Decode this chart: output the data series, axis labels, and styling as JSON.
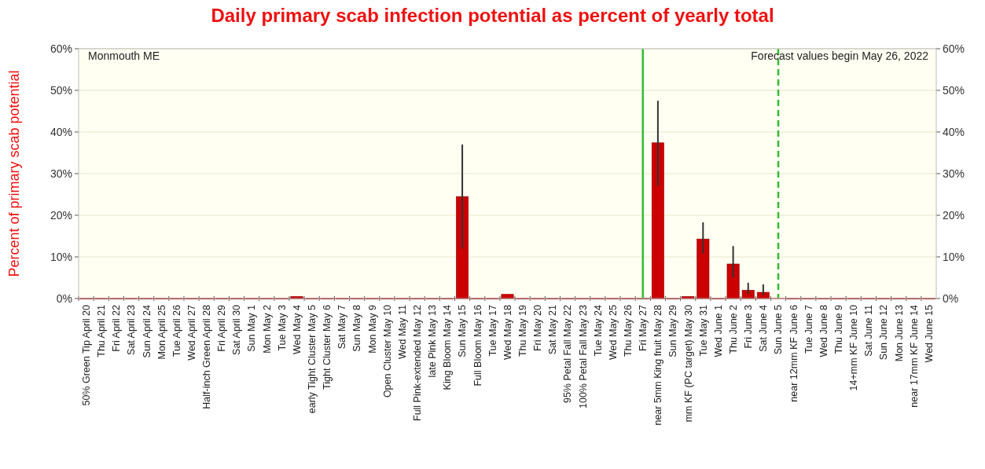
{
  "chart_data": {
    "type": "bar",
    "title": "Daily primary scab infection potential as percent of yearly total",
    "ylabel": "Percent of  primary scab potential",
    "annotations": [
      "Monmouth ME",
      "Forecast values begin May 26, 2022"
    ],
    "categories": [
      "50% Green Tip  April 20",
      "Thu  April 21",
      "Fri  April 22",
      "Sat  April 23",
      "Sun  April 24",
      "Mon  April 25",
      "Tue  April 26",
      "Wed  April 27",
      "Half-inch Green  April 28",
      "Fri  April 29",
      "Sat  April 30",
      "Sun  May 1",
      "Mon  May 2",
      "Tue  May 3",
      "Wed  May 4",
      "early Tight Cluster  May 5",
      "Tight Cluster  May 6",
      "Sat  May 7",
      "Sun  May 8",
      "Mon  May 9",
      "Open Cluster  May 10",
      "Wed  May 11",
      "Full Pink-extended  May 12",
      "late Pink  May 13",
      "King Bloom  May 14",
      "Sun  May 15",
      "Full Bloom  May 16",
      "Tue  May 17",
      "Wed  May 18",
      "Thu  May 19",
      "Fri  May 20",
      "Sat  May 21",
      "95% Petal Fall  May 22",
      "100% Petal Fall  May 23",
      "Tue  May 24",
      "Wed  May 25",
      "Thu  May 26",
      "Fri  May 27",
      "near 5mm King fruit  May 28",
      "Sun  May 29",
      "mm KF (PC target)  May 30",
      "Tue  May 31",
      "Wed  June 1",
      "Thu  June 2",
      "Fri  June 3",
      "Sat  June 4",
      "Sun  June 5",
      "near 12mm KF  June 6",
      "Tue  June 7",
      "Wed  June 8",
      "Thu  June 9",
      "14+mm KF  June 10",
      "Sat  June 11",
      "Sun  June 12",
      "Mon  June 13",
      "near 17mm KF  June 14",
      "Wed  June 15"
    ],
    "values": [
      0,
      0,
      0,
      0,
      0,
      0,
      0,
      0,
      0,
      0,
      0,
      0,
      0,
      0,
      0.5,
      0,
      0,
      0,
      0,
      0,
      0,
      0,
      0,
      0,
      0,
      24.5,
      0,
      0,
      1,
      0,
      0,
      0,
      0,
      0,
      0,
      0,
      0,
      0,
      37.4,
      0,
      0.5,
      14.3,
      0,
      8.3,
      2,
      1.5,
      null,
      0,
      0,
      0,
      0,
      0,
      0,
      0,
      0,
      0,
      0
    ],
    "errors": [
      null,
      null,
      null,
      null,
      null,
      null,
      null,
      null,
      null,
      null,
      null,
      null,
      null,
      null,
      null,
      null,
      null,
      null,
      null,
      null,
      null,
      null,
      null,
      null,
      null,
      [
        12,
        37
      ],
      null,
      null,
      null,
      null,
      null,
      null,
      null,
      null,
      null,
      null,
      null,
      null,
      [
        27,
        47.5
      ],
      null,
      null,
      [
        10.8,
        18.3
      ],
      null,
      [
        5,
        12.6
      ],
      [
        1,
        3.8
      ],
      [
        0.8,
        3.4
      ],
      null,
      null,
      null,
      null,
      null,
      null,
      null,
      null,
      null,
      null,
      null
    ],
    "color": "#cc0000",
    "ylim": [
      0,
      60
    ],
    "yticks": [
      {
        "value": 0,
        "label": "0%"
      },
      {
        "value": 10,
        "label": "10%"
      },
      {
        "value": 20,
        "label": "20%"
      },
      {
        "value": 30,
        "label": "30%"
      },
      {
        "value": 40,
        "label": "40%"
      },
      {
        "value": 50,
        "label": "50%"
      },
      {
        "value": 60,
        "label": "60%"
      }
    ],
    "y2lim": [
      0,
      60
    ],
    "y2ticks": [
      {
        "value": 0,
        "label": "0%"
      },
      {
        "value": 10,
        "label": "10%"
      },
      {
        "value": 20,
        "label": "20%"
      },
      {
        "value": 30,
        "label": "30%"
      },
      {
        "value": 40,
        "label": "40%"
      },
      {
        "value": 50,
        "label": "50%"
      },
      {
        "value": 60,
        "label": "60%"
      }
    ],
    "ref_lines": [
      {
        "axis": "x",
        "value": "Fri  May 27",
        "color": "#33bb33",
        "line_style": "solid"
      },
      {
        "axis": "x",
        "value": "Sun  June 5",
        "color": "#33bb33",
        "line_style": "dashed"
      }
    ],
    "grid": "y"
  }
}
